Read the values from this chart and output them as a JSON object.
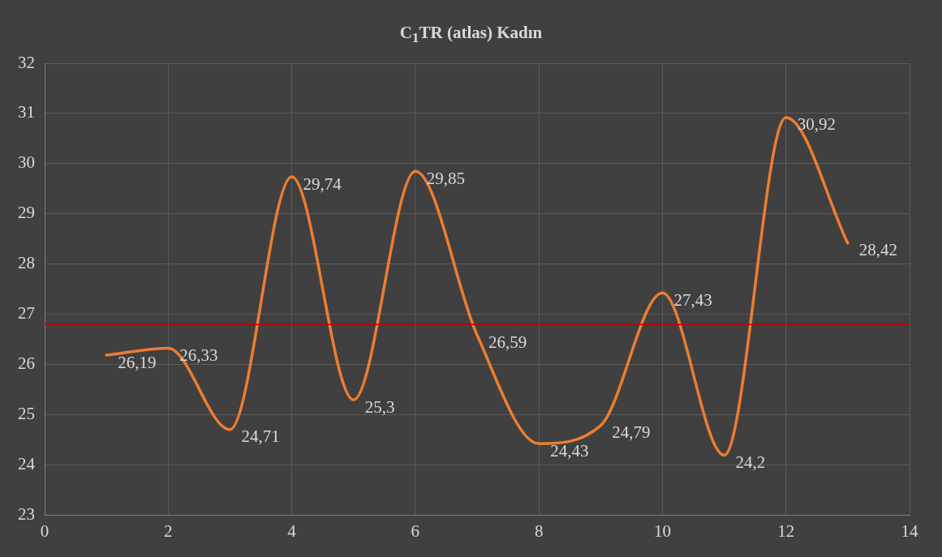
{
  "chart_data": {
    "type": "line",
    "title": "C$_{1}$TR (atlas) Kadın",
    "x": [
      1,
      2,
      3,
      4,
      5,
      6,
      7,
      8,
      9,
      10,
      11,
      12,
      13
    ],
    "series": [
      {
        "color": "#ed7d31",
        "values": [
          26.19,
          26.33,
          24.71,
          29.74,
          25.3,
          29.85,
          26.59,
          24.43,
          24.79,
          27.43,
          24.2,
          30.92,
          28.42
        ],
        "value_labels": [
          "26,19",
          "26,33",
          "24,71",
          "29,74",
          "25,3",
          "29,85",
          "26,59",
          "24,43",
          "24,79",
          "27,43",
          "24,2",
          "30,92",
          "28,42"
        ]
      }
    ],
    "xlim": [
      0,
      14
    ],
    "xticks": [
      0,
      2,
      4,
      6,
      8,
      10,
      12,
      14
    ],
    "ylim": [
      23,
      32
    ],
    "yticks": [
      23,
      24,
      25,
      26,
      27,
      28,
      29,
      30,
      31,
      32
    ],
    "ref_lines": [
      {
        "axis": "y",
        "value": 26.8,
        "color": "#c00000"
      }
    ],
    "grid": true,
    "legend": false,
    "marker": "none",
    "line_style": "solid"
  }
}
